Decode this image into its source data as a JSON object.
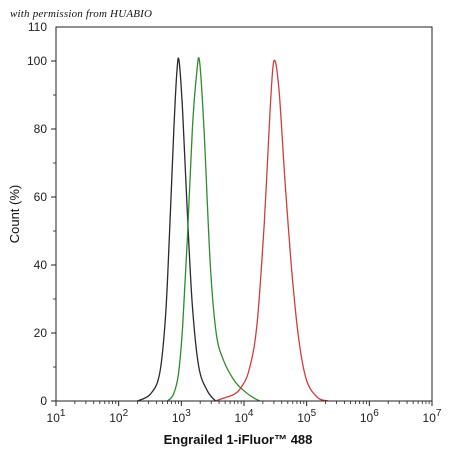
{
  "watermark": "with permission from HUABIO",
  "chart_data": {
    "type": "line",
    "title": "",
    "xlabel": "Engrailed 1-iFluor™ 488",
    "ylabel": "Count (%)",
    "x_scale": "log",
    "xlim": [
      10,
      10000000
    ],
    "ylim": [
      0,
      110
    ],
    "x_ticks": [
      {
        "value": 10,
        "base": "10",
        "exp": "1"
      },
      {
        "value": 100,
        "base": "10",
        "exp": "2"
      },
      {
        "value": 1000,
        "base": "10",
        "exp": "3"
      },
      {
        "value": 10000,
        "base": "10",
        "exp": "4"
      },
      {
        "value": 100000,
        "base": "10",
        "exp": "5"
      },
      {
        "value": 1000000,
        "base": "10",
        "exp": "6"
      },
      {
        "value": 10000000,
        "base": "10",
        "exp": "7"
      }
    ],
    "y_ticks": [
      0,
      20,
      40,
      60,
      80,
      100
    ],
    "y_tick_labels": [
      "0",
      "20",
      "40",
      "60",
      "80",
      "100"
    ],
    "y_top_label": "110",
    "grid": false,
    "series": [
      {
        "color": "#2a2a2a",
        "x": [
          200,
          320,
          450,
          560,
          650,
          760,
          850,
          920,
          1050,
          1250,
          1500,
          1900,
          2600,
          3500
        ],
        "y": [
          0,
          2,
          8,
          25,
          50,
          80,
          97,
          100,
          85,
          55,
          28,
          10,
          3,
          0
        ]
      },
      {
        "color": "#2e8b2e",
        "x": [
          600,
          750,
          900,
          1050,
          1250,
          1500,
          1750,
          1950,
          2300,
          2900,
          3600,
          4700,
          7000,
          10000,
          14000,
          18000
        ],
        "y": [
          0,
          2,
          8,
          22,
          48,
          80,
          96,
          100,
          80,
          40,
          20,
          12,
          6,
          3,
          1,
          0
        ]
      },
      {
        "color": "#d23c3c",
        "x": [
          3500,
          5000,
          7000,
          9000,
          12000,
          16000,
          21000,
          26000,
          30000,
          36000,
          45000,
          58000,
          75000,
          100000,
          150000,
          220000
        ],
        "y": [
          0,
          1,
          2,
          4,
          9,
          22,
          52,
          85,
          100,
          92,
          65,
          38,
          18,
          6,
          1,
          0
        ]
      }
    ]
  }
}
